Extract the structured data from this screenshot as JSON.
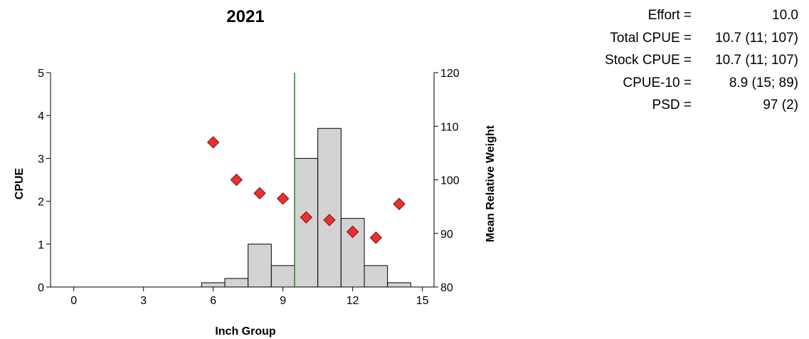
{
  "stats": [
    {
      "label": "Effort =",
      "value": "10.0"
    },
    {
      "label": "Total CPUE =",
      "value": "10.7 (11; 107)"
    },
    {
      "label": "Stock CPUE =",
      "value": "10.7 (11; 107)"
    },
    {
      "label": "CPUE-10 =",
      "value": "8.9 (15; 89)"
    },
    {
      "label": "PSD =",
      "value": "97 (2)"
    }
  ],
  "chart_data": {
    "type": "bar",
    "title": "2021",
    "xlabel": "Inch Group",
    "ylabel": "CPUE",
    "y2label": "Mean Relative Weight",
    "xlim": [
      -1,
      15.5
    ],
    "ylim": [
      0,
      5
    ],
    "y2lim": [
      80,
      120
    ],
    "xticks": [
      0,
      3,
      6,
      9,
      12,
      15
    ],
    "yticks": [
      0,
      1,
      2,
      3,
      4,
      5
    ],
    "y2ticks": [
      80,
      90,
      100,
      110,
      120
    ],
    "bar_color": "#d3d3d3",
    "marker_color": "#e8312f",
    "line_color": "#1a8a1a",
    "grid": false,
    "series": [
      {
        "type": "bar",
        "axis": "left",
        "x": [
          6,
          7,
          8,
          9,
          10,
          11,
          12,
          13,
          14
        ],
        "values": [
          0.1,
          0.2,
          1.0,
          0.5,
          3.0,
          3.7,
          1.6,
          0.5,
          0.1
        ]
      },
      {
        "type": "scatter",
        "axis": "right",
        "marker": "diamond",
        "x": [
          6,
          7,
          8,
          9,
          10,
          11,
          12,
          13,
          14
        ],
        "values": [
          107,
          100,
          97.5,
          96.5,
          93,
          92.5,
          90.3,
          89.2,
          95.5
        ]
      }
    ],
    "vline": {
      "x": 9.5
    }
  }
}
